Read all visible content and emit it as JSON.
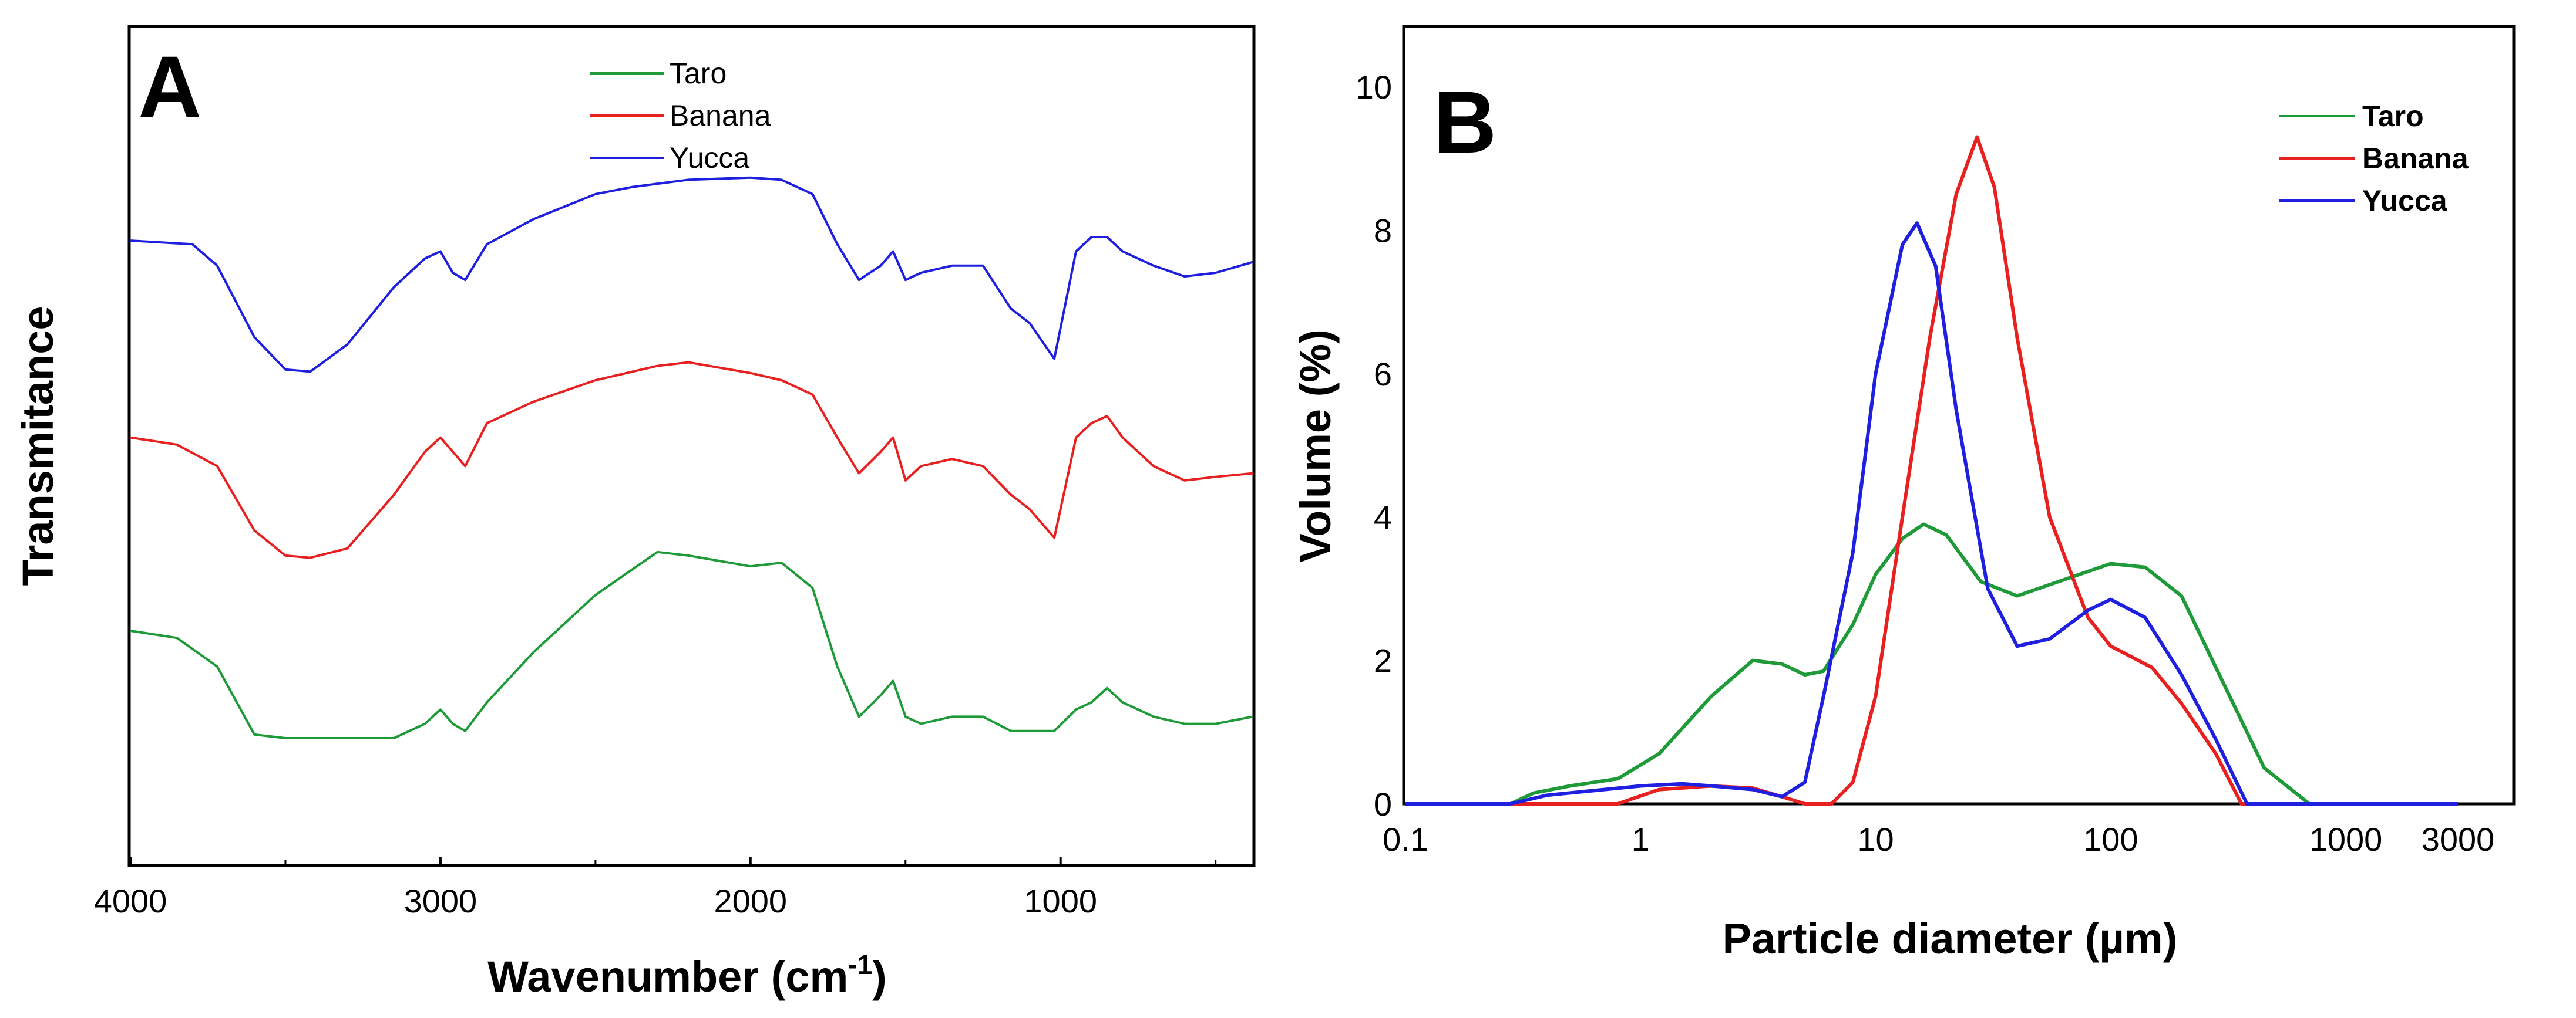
{
  "chart_data": [
    {
      "panel": "A",
      "type": "line",
      "xlabel": "Wavenumber (cm",
      "xlabel_sup": "-1",
      "xlabel_close": ")",
      "ylabel": "Transmitance",
      "xlim": [
        4000,
        380
      ],
      "ylim": [
        0,
        100
      ],
      "xticks": [
        4000,
        3000,
        2000,
        1000
      ],
      "legend": [
        "Taro",
        "Banana",
        "Yucca"
      ],
      "series": [
        {
          "name": "Yucca",
          "color": "#1f1fe0",
          "x": [
            4000,
            3800,
            3720,
            3600,
            3500,
            3420,
            3300,
            3150,
            3050,
            3000,
            2960,
            2920,
            2850,
            2700,
            2500,
            2380,
            2200,
            2000,
            1900,
            1800,
            1720,
            1650,
            1580,
            1540,
            1500,
            1450,
            1350,
            1250,
            1160,
            1100,
            1020,
            950,
            900,
            850,
            800,
            700,
            600,
            500,
            380
          ],
          "y": [
            79.5,
            79,
            76,
            66,
            61.5,
            61.2,
            65,
            73,
            77,
            78,
            75,
            74,
            79,
            82.5,
            86,
            87,
            88,
            88.3,
            88,
            86,
            79,
            74,
            76,
            78,
            74,
            75,
            76,
            76,
            70,
            68,
            63,
            78,
            80,
            80,
            78,
            76,
            74.5,
            75,
            76.5
          ]
        },
        {
          "name": "Banana",
          "color": "#e82020",
          "x": [
            4000,
            3850,
            3720,
            3600,
            3500,
            3420,
            3300,
            3150,
            3050,
            3000,
            2960,
            2920,
            2850,
            2700,
            2500,
            2300,
            2200,
            2000,
            1900,
            1800,
            1720,
            1650,
            1580,
            1540,
            1500,
            1450,
            1350,
            1250,
            1160,
            1100,
            1020,
            950,
            900,
            850,
            800,
            700,
            600,
            500,
            380
          ],
          "y": [
            52,
            51,
            48,
            39,
            35.5,
            35.2,
            36.5,
            44,
            50,
            52,
            50,
            48,
            54,
            57,
            60,
            62,
            62.5,
            61,
            60,
            58,
            52,
            47,
            50,
            52,
            46,
            48,
            49,
            48,
            44,
            42,
            38,
            52,
            54,
            55,
            52,
            48,
            46,
            46.5,
            47
          ]
        },
        {
          "name": "Taro",
          "color": "#1e9a38",
          "x": [
            4000,
            3850,
            3720,
            3600,
            3500,
            3400,
            3300,
            3150,
            3050,
            3000,
            2960,
            2920,
            2850,
            2700,
            2500,
            2300,
            2200,
            2000,
            1900,
            1800,
            1720,
            1650,
            1580,
            1540,
            1500,
            1450,
            1350,
            1250,
            1160,
            1100,
            1020,
            950,
            900,
            850,
            800,
            700,
            600,
            500,
            380
          ],
          "y": [
            25,
            24,
            20,
            10.5,
            10,
            10,
            10,
            10,
            12,
            14,
            12,
            11,
            15,
            22,
            30,
            36,
            35.5,
            34,
            34.5,
            31,
            20,
            13,
            16,
            18,
            13,
            12,
            13,
            13,
            11,
            11,
            11,
            14,
            15,
            17,
            15,
            13,
            12,
            12,
            13
          ]
        }
      ]
    },
    {
      "panel": "B",
      "type": "line",
      "xscale": "log",
      "xlabel": "Particle diameter (µm)",
      "ylabel": "Volume (%)",
      "xlim": [
        0.1,
        3000
      ],
      "ylim": [
        0,
        10
      ],
      "xticks": [
        0.1,
        1,
        10,
        100,
        1000,
        3000
      ],
      "xtick_labels": [
        "0.1",
        "1",
        "10",
        "100",
        "1000",
        "3000"
      ],
      "yticks": [
        0,
        2,
        4,
        6,
        8,
        10
      ],
      "ytick_labels": [
        "0",
        "2",
        "4",
        "6",
        "8",
        "10"
      ],
      "legend": [
        "Taro",
        "Banana",
        "Yucca"
      ],
      "series": [
        {
          "name": "Taro",
          "color": "#1e9a38",
          "x": [
            0.1,
            0.28,
            0.35,
            0.5,
            0.8,
            1.2,
            2,
            3,
            4,
            5,
            6,
            8,
            10,
            13,
            16,
            20,
            28,
            40,
            60,
            100,
            140,
            200,
            300,
            450,
            700,
            3000
          ],
          "y": [
            0,
            0,
            0.15,
            0.25,
            0.35,
            0.7,
            1.5,
            2.0,
            1.95,
            1.8,
            1.85,
            2.5,
            3.2,
            3.7,
            3.9,
            3.75,
            3.1,
            2.9,
            3.1,
            3.35,
            3.3,
            2.9,
            1.7,
            0.5,
            0,
            0
          ]
        },
        {
          "name": "Banana",
          "color": "#e82020",
          "x": [
            0.1,
            0.4,
            0.8,
            1.2,
            2,
            3,
            4,
            5,
            6.5,
            8,
            10,
            13,
            17,
            22,
            27,
            32,
            40,
            55,
            80,
            100,
            150,
            200,
            280,
            360,
            3000
          ],
          "y": [
            0,
            0,
            0,
            0.2,
            0.25,
            0.22,
            0.1,
            0,
            0,
            0.3,
            1.5,
            4,
            6.5,
            8.5,
            9.3,
            8.6,
            6.5,
            4.0,
            2.6,
            2.2,
            1.9,
            1.4,
            0.7,
            0,
            0
          ]
        },
        {
          "name": "Yucca",
          "color": "#1f1fe0",
          "x": [
            0.1,
            0.28,
            0.4,
            0.7,
            1,
            1.5,
            2,
            3,
            4,
            5,
            6,
            8,
            10,
            13,
            15,
            18,
            22,
            30,
            40,
            55,
            80,
            100,
            140,
            200,
            280,
            380,
            3000
          ],
          "y": [
            0,
            0,
            0.12,
            0.2,
            0.25,
            0.28,
            0.25,
            0.2,
            0.1,
            0.3,
            1.5,
            3.5,
            6.0,
            7.8,
            8.1,
            7.5,
            5.5,
            3.0,
            2.2,
            2.3,
            2.7,
            2.85,
            2.6,
            1.8,
            0.9,
            0,
            0
          ]
        }
      ]
    }
  ]
}
